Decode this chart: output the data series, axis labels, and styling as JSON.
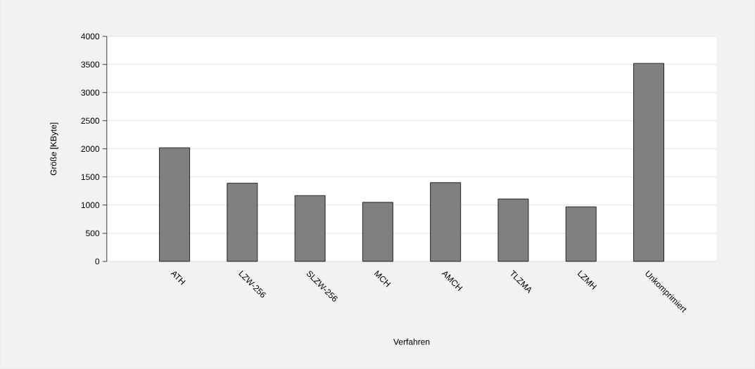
{
  "chart_data": {
    "type": "bar",
    "xlabel": "Verfahren",
    "ylabel": "Größe [KByte]",
    "categories": [
      "ATH",
      "LZW-256",
      "SLZW-256",
      "MCH",
      "AMCH",
      "TLZMA",
      "LZMH",
      "Unkomprimiert"
    ],
    "values": [
      2020,
      1390,
      1170,
      1050,
      1400,
      1110,
      970,
      3520
    ],
    "color": "#808080",
    "ylim": [
      0,
      4000
    ],
    "yticks": [
      0,
      500,
      1000,
      1500,
      2000,
      2500,
      3000,
      3500,
      4000
    ],
    "grid": "y"
  }
}
